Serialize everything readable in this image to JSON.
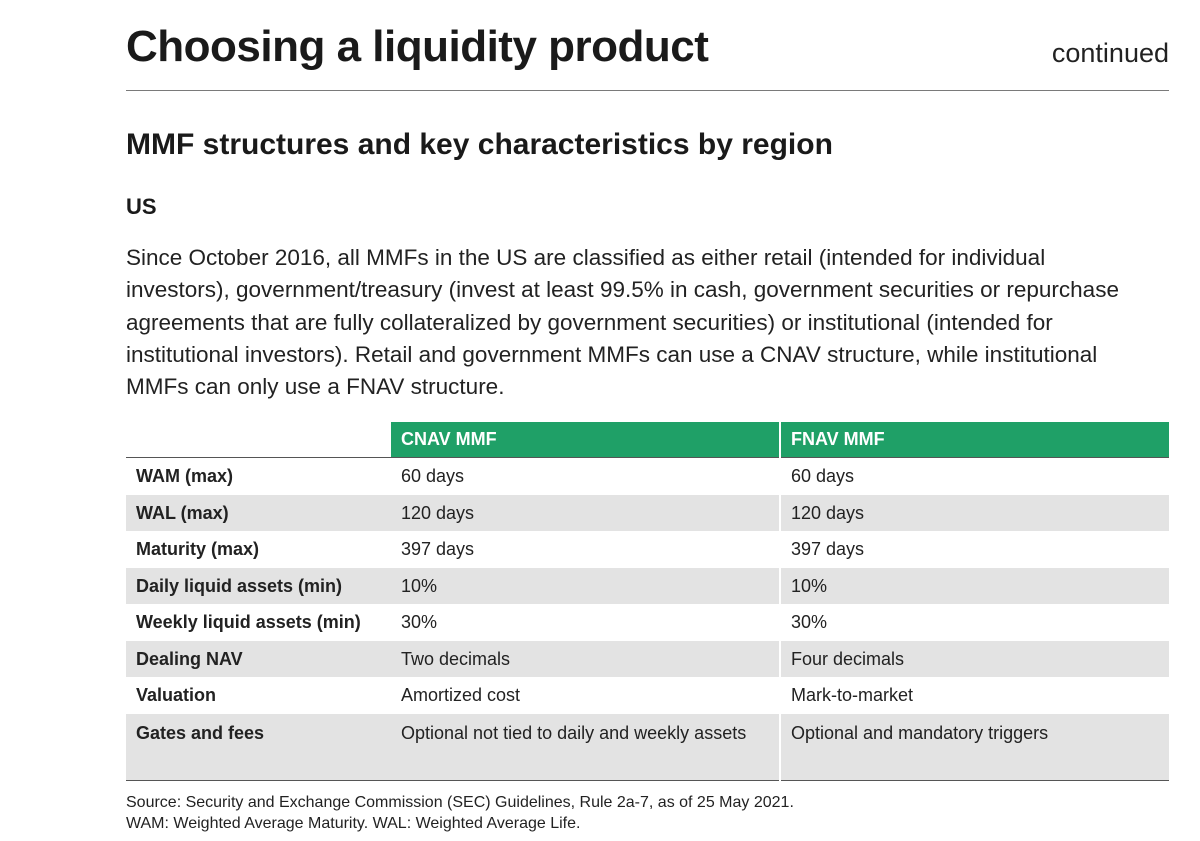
{
  "header": {
    "title": "Choosing a liquidity product",
    "continued": "continued"
  },
  "section": {
    "title": "MMF structures and key characteristics by region",
    "region": "US",
    "intro": "Since October 2016, all MMFs in the US are classified as either retail (intended for individual investors), government/treasury (invest at least 99.5% in cash, government securities or repurchase agreements that are fully collateralized by government securities) or institutional (intended for institutional investors). Retail and government MMFs can use a CNAV structure, while institutional MMFs can only use a FNAV structure."
  },
  "table": {
    "columns": [
      "",
      "CNAV MMF",
      "FNAV MMF"
    ],
    "rows": [
      {
        "label": "WAM (max)",
        "cnav": "60 days",
        "fnav": "60 days"
      },
      {
        "label": "WAL (max)",
        "cnav": "120 days",
        "fnav": "120 days"
      },
      {
        "label": "Maturity (max)",
        "cnav": "397 days",
        "fnav": "397 days"
      },
      {
        "label": "Daily liquid assets (min)",
        "cnav": "10%",
        "fnav": "10%"
      },
      {
        "label": "Weekly liquid assets (min)",
        "cnav": "30%",
        "fnav": "30%"
      },
      {
        "label": "Dealing NAV",
        "cnav": "Two decimals",
        "fnav": "Four decimals"
      },
      {
        "label": "Valuation",
        "cnav": "Amortized cost",
        "fnav": "Mark-to-market"
      },
      {
        "label": "Gates and fees",
        "cnav": "Optional not tied to daily and weekly assets",
        "fnav": "Optional and mandatory triggers"
      }
    ]
  },
  "footnotes": {
    "source": "Source: Security and Exchange Commission (SEC) Guidelines, Rule 2a-7, as of 25 May 2021.",
    "abbreviations": "WAM: Weighted Average Maturity. WAL: Weighted Average Life."
  },
  "colors": {
    "header_green": "#1fa067",
    "row_alt_gray": "#e3e3e3",
    "text": "#222222"
  }
}
